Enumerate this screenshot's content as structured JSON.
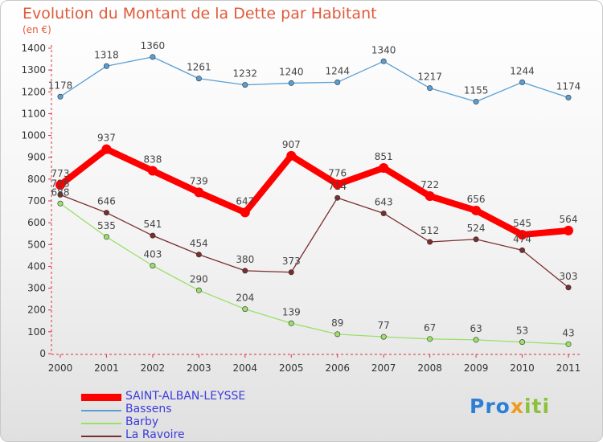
{
  "title": "Evolution du Montant de la Dette par Habitant",
  "subtitle": "(en €)",
  "logo": {
    "part1": "Pro",
    "part2": "x",
    "part3": "iti"
  },
  "chart_data": {
    "type": "line",
    "title": "Evolution du Montant de la Dette par Habitant",
    "subtitle": "(en €)",
    "x": [
      "2000",
      "2001",
      "2002",
      "2003",
      "2004",
      "2005",
      "2006",
      "2007",
      "2008",
      "2009",
      "2010",
      "2011"
    ],
    "ylim": [
      0,
      1400
    ],
    "yticks": [
      0,
      100,
      200,
      300,
      400,
      500,
      600,
      700,
      800,
      900,
      1000,
      1100,
      1200,
      1300,
      1400
    ],
    "grid": false,
    "legend_position": "bottom-left",
    "series": [
      {
        "name": "SAINT-ALBAN-LEYSSE",
        "color": "#ff0000",
        "values": [
          773,
          937,
          838,
          739,
          647,
          907,
          776,
          851,
          722,
          656,
          545,
          564
        ]
      },
      {
        "name": "Bassens",
        "color": "#5a9fd4",
        "values": [
          1178,
          1318,
          1360,
          1261,
          1232,
          1240,
          1244,
          1340,
          1217,
          1155,
          1244,
          1174
        ]
      },
      {
        "name": "Barby",
        "color": "#9ae06a",
        "values": [
          688,
          535,
          403,
          290,
          204,
          139,
          89,
          77,
          67,
          63,
          53,
          43
        ]
      },
      {
        "name": "La Ravoire",
        "color": "#7a2e2e",
        "values": [
          728,
          646,
          541,
          454,
          380,
          373,
          714,
          643,
          512,
          524,
          474,
          303
        ]
      }
    ]
  }
}
